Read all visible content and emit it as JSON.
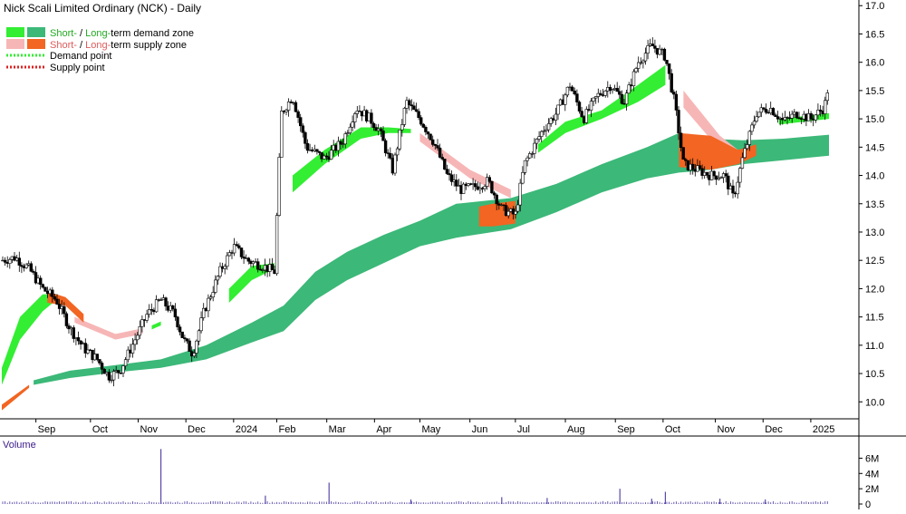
{
  "chart": {
    "title": "Nick Scali Limited Ordinary (NCK) - Daily",
    "legend": {
      "demand_zone": {
        "short": "Short-",
        "sep": " / ",
        "long": "Long-",
        "rest": "term demand zone"
      },
      "supply_zone": {
        "short": "Short-",
        "sep": " / ",
        "long": "Long-",
        "rest": "term supply zone"
      },
      "demand_point": "Demand point",
      "supply_point": "Supply point"
    },
    "volume_label": "Volume",
    "colors": {
      "short_demand": "#33ee33",
      "long_demand": "#3cb878",
      "short_supply": "#f7b6b6",
      "long_supply": "#f26522",
      "candle": "#000000",
      "volume_bar": "#5a4aa8",
      "legend_text_green": "#22aa22",
      "legend_text_red": "#e05a5a"
    }
  },
  "chart_data": [
    {
      "type": "line",
      "subtype": "ohlc-candlestick",
      "title": "Nick Scali Limited Ordinary (NCK) - Daily",
      "ylim": [
        9.7,
        17.1
      ],
      "y_axis_side": "right",
      "y_ticks": [
        "10.0",
        "10.5",
        "11.0",
        "11.5",
        "12.0",
        "12.5",
        "13.0",
        "13.5",
        "14.0",
        "14.5",
        "15.0",
        "15.5",
        "16.0",
        "16.5",
        "17.0"
      ],
      "x_ticks": [
        "Sep",
        "Oct",
        "Nov",
        "Dec",
        "2024",
        "Feb",
        "Mar",
        "Apr",
        "May",
        "Jun",
        "Jul",
        "Aug",
        "Sep",
        "Oct",
        "Nov",
        "Dec",
        "2025"
      ],
      "x_tick_index": [
        0.85,
        2.05,
        3.1,
        4.15,
        5.2,
        6.15,
        7.25,
        8.3,
        9.3,
        10.4,
        11.4,
        12.5,
        13.6,
        14.65,
        15.8,
        16.85,
        17.9
      ],
      "x_range_index": [
        0,
        18.5
      ],
      "close": [
        {
          "x": 0.0,
          "y": 12.5
        },
        {
          "x": 0.3,
          "y": 12.55
        },
        {
          "x": 0.6,
          "y": 12.35
        },
        {
          "x": 0.9,
          "y": 12.0
        },
        {
          "x": 1.2,
          "y": 11.8
        },
        {
          "x": 1.5,
          "y": 11.3
        },
        {
          "x": 1.8,
          "y": 10.95
        },
        {
          "x": 2.1,
          "y": 10.75
        },
        {
          "x": 2.35,
          "y": 10.45
        },
        {
          "x": 2.6,
          "y": 10.55
        },
        {
          "x": 2.9,
          "y": 11.05
        },
        {
          "x": 3.2,
          "y": 11.55
        },
        {
          "x": 3.5,
          "y": 11.8
        },
        {
          "x": 3.8,
          "y": 11.55
        },
        {
          "x": 4.0,
          "y": 11.1
        },
        {
          "x": 4.2,
          "y": 10.85
        },
        {
          "x": 4.45,
          "y": 11.6
        },
        {
          "x": 4.8,
          "y": 12.3
        },
        {
          "x": 5.1,
          "y": 12.75
        },
        {
          "x": 5.4,
          "y": 12.5
        },
        {
          "x": 5.75,
          "y": 12.4
        },
        {
          "x": 6.0,
          "y": 12.3
        },
        {
          "x": 6.15,
          "y": 15.1
        },
        {
          "x": 6.4,
          "y": 15.4
        },
        {
          "x": 6.7,
          "y": 14.5
        },
        {
          "x": 7.1,
          "y": 14.3
        },
        {
          "x": 7.5,
          "y": 14.6
        },
        {
          "x": 7.8,
          "y": 15.2
        },
        {
          "x": 8.1,
          "y": 15.0
        },
        {
          "x": 8.3,
          "y": 14.8
        },
        {
          "x": 8.6,
          "y": 14.1
        },
        {
          "x": 8.9,
          "y": 15.3
        },
        {
          "x": 9.2,
          "y": 15.0
        },
        {
          "x": 9.5,
          "y": 14.6
        },
        {
          "x": 9.8,
          "y": 14.0
        },
        {
          "x": 10.1,
          "y": 13.75
        },
        {
          "x": 10.4,
          "y": 13.8
        },
        {
          "x": 10.7,
          "y": 13.9
        },
        {
          "x": 11.0,
          "y": 13.4
        },
        {
          "x": 11.3,
          "y": 13.3
        },
        {
          "x": 11.5,
          "y": 14.2
        },
        {
          "x": 11.9,
          "y": 14.8
        },
        {
          "x": 12.2,
          "y": 15.1
        },
        {
          "x": 12.5,
          "y": 15.6
        },
        {
          "x": 12.8,
          "y": 15.0
        },
        {
          "x": 13.1,
          "y": 15.4
        },
        {
          "x": 13.4,
          "y": 15.6
        },
        {
          "x": 13.7,
          "y": 15.3
        },
        {
          "x": 14.0,
          "y": 16.0
        },
        {
          "x": 14.3,
          "y": 16.3
        },
        {
          "x": 14.6,
          "y": 16.1
        },
        {
          "x": 14.8,
          "y": 15.3
        },
        {
          "x": 15.0,
          "y": 14.2
        },
        {
          "x": 15.3,
          "y": 14.1
        },
        {
          "x": 15.6,
          "y": 14.0
        },
        {
          "x": 15.9,
          "y": 14.0
        },
        {
          "x": 16.1,
          "y": 13.6
        },
        {
          "x": 16.3,
          "y": 14.3
        },
        {
          "x": 16.6,
          "y": 15.1
        },
        {
          "x": 16.9,
          "y": 15.2
        },
        {
          "x": 17.2,
          "y": 14.95
        },
        {
          "x": 17.5,
          "y": 15.1
        },
        {
          "x": 17.8,
          "y": 15.0
        },
        {
          "x": 18.1,
          "y": 15.2
        },
        {
          "x": 18.2,
          "y": 15.65
        }
      ],
      "long_term_demand_zone": [
        {
          "x": 0.7,
          "y_low": 10.3,
          "y_high": 10.38
        },
        {
          "x": 1.5,
          "y_low": 10.42,
          "y_high": 10.55
        },
        {
          "x": 2.5,
          "y_low": 10.52,
          "y_high": 10.65
        },
        {
          "x": 3.5,
          "y_low": 10.6,
          "y_high": 10.75
        },
        {
          "x": 4.5,
          "y_low": 10.75,
          "y_high": 11.0
        },
        {
          "x": 5.5,
          "y_low": 11.05,
          "y_high": 11.4
        },
        {
          "x": 6.2,
          "y_low": 11.25,
          "y_high": 11.7
        },
        {
          "x": 6.9,
          "y_low": 11.8,
          "y_high": 12.3
        },
        {
          "x": 7.6,
          "y_low": 12.15,
          "y_high": 12.65
        },
        {
          "x": 8.4,
          "y_low": 12.45,
          "y_high": 12.95
        },
        {
          "x": 9.2,
          "y_low": 12.75,
          "y_high": 13.2
        },
        {
          "x": 10.0,
          "y_low": 12.9,
          "y_high": 13.5
        },
        {
          "x": 11.2,
          "y_low": 13.05,
          "y_high": 13.6
        },
        {
          "x": 12.2,
          "y_low": 13.35,
          "y_high": 13.85
        },
        {
          "x": 13.2,
          "y_low": 13.7,
          "y_high": 14.2
        },
        {
          "x": 14.2,
          "y_low": 13.95,
          "y_high": 14.5
        },
        {
          "x": 14.9,
          "y_low": 14.05,
          "y_high": 14.75
        },
        {
          "x": 15.6,
          "y_low": 14.1,
          "y_high": 14.65
        },
        {
          "x": 16.3,
          "y_low": 14.2,
          "y_high": 14.62
        },
        {
          "x": 17.2,
          "y_low": 14.27,
          "y_high": 14.65
        },
        {
          "x": 18.2,
          "y_low": 14.35,
          "y_high": 14.72
        }
      ],
      "short_term_demand_zone": [
        {
          "x": 0.0,
          "y_low": 10.3,
          "y_high": 10.6
        },
        {
          "x": 0.4,
          "y_low": 11.1,
          "y_high": 11.5
        },
        {
          "x": 0.9,
          "y_low": 11.6,
          "y_high": 11.9
        },
        {
          "x": 1.2,
          "y_low": 11.8,
          "y_high": 11.9
        },
        {
          "x": 3.3,
          "y_low": 11.28,
          "y_high": 11.35
        },
        {
          "x": 3.5,
          "y_low": 11.35,
          "y_high": 11.42
        },
        {
          "x": 4.5,
          "y_low": 11.1,
          "y_high": 11.15
        },
        {
          "x": 5.0,
          "y_low": 11.75,
          "y_high": 12.0
        },
        {
          "x": 5.5,
          "y_low": 12.15,
          "y_high": 12.4
        },
        {
          "x": 6.0,
          "y_low": 12.35,
          "y_high": 12.45
        },
        {
          "x": 6.4,
          "y_low": 13.7,
          "y_high": 14.0
        },
        {
          "x": 7.1,
          "y_low": 14.2,
          "y_high": 14.45
        },
        {
          "x": 7.9,
          "y_low": 14.65,
          "y_high": 14.85
        },
        {
          "x": 8.5,
          "y_low": 14.75,
          "y_high": 14.85
        },
        {
          "x": 9.0,
          "y_low": 14.75,
          "y_high": 14.82
        },
        {
          "x": 11.8,
          "y_low": 14.4,
          "y_high": 14.55
        },
        {
          "x": 12.4,
          "y_low": 14.75,
          "y_high": 14.95
        },
        {
          "x": 13.2,
          "y_low": 15.0,
          "y_high": 15.15
        },
        {
          "x": 14.0,
          "y_low": 15.3,
          "y_high": 15.6
        },
        {
          "x": 14.6,
          "y_low": 15.6,
          "y_high": 15.95
        },
        {
          "x": 17.1,
          "y_low": 14.9,
          "y_high": 15.0
        },
        {
          "x": 18.2,
          "y_low": 15.0,
          "y_high": 15.1
        }
      ],
      "short_term_supply_zone": [
        {
          "x": 1.6,
          "y_low": 11.4,
          "y_high": 11.5
        },
        {
          "x": 2.5,
          "y_low": 11.1,
          "y_high": 11.2
        },
        {
          "x": 3.1,
          "y_low": 11.2,
          "y_high": 11.3
        },
        {
          "x": 9.2,
          "y_low": 14.6,
          "y_high": 14.75
        },
        {
          "x": 10.3,
          "y_low": 13.95,
          "y_high": 14.1
        },
        {
          "x": 11.2,
          "y_low": 13.6,
          "y_high": 13.75
        },
        {
          "x": 15.0,
          "y_low": 15.2,
          "y_high": 15.5
        },
        {
          "x": 15.8,
          "y_low": 14.45,
          "y_high": 14.7
        },
        {
          "x": 16.2,
          "y_low": 14.3,
          "y_high": 14.45
        }
      ],
      "long_term_supply_zone": [
        {
          "x": 0.0,
          "y_low": 9.85,
          "y_high": 9.95
        },
        {
          "x": 1.4,
          "y_low": 11.7,
          "y_high": 11.85
        },
        {
          "x": 10.8,
          "y_low": 13.1,
          "y_high": 13.5
        },
        {
          "x": 14.9,
          "y_low": 14.4,
          "y_high": 14.7
        },
        {
          "x": 16.2,
          "y_low": 14.2,
          "y_high": 14.45
        }
      ]
    },
    {
      "type": "bar",
      "title": "Volume",
      "ylim": [
        0,
        7000000
      ],
      "y_ticks": [
        "0",
        "2M",
        "4M",
        "6M"
      ],
      "x_range_index": [
        0,
        18.5
      ],
      "spikes": [
        {
          "x": 3.5,
          "value": 7200000
        },
        {
          "x": 5.8,
          "value": 1100000
        },
        {
          "x": 7.2,
          "value": 2800000
        },
        {
          "x": 9.0,
          "value": 600000
        },
        {
          "x": 11.0,
          "value": 900000
        },
        {
          "x": 12.0,
          "value": 800000
        },
        {
          "x": 13.6,
          "value": 2000000
        },
        {
          "x": 14.3,
          "value": 700000
        },
        {
          "x": 14.6,
          "value": 1600000
        },
        {
          "x": 15.8,
          "value": 700000
        },
        {
          "x": 16.8,
          "value": 600000
        }
      ],
      "baseline_value": 250000
    }
  ]
}
